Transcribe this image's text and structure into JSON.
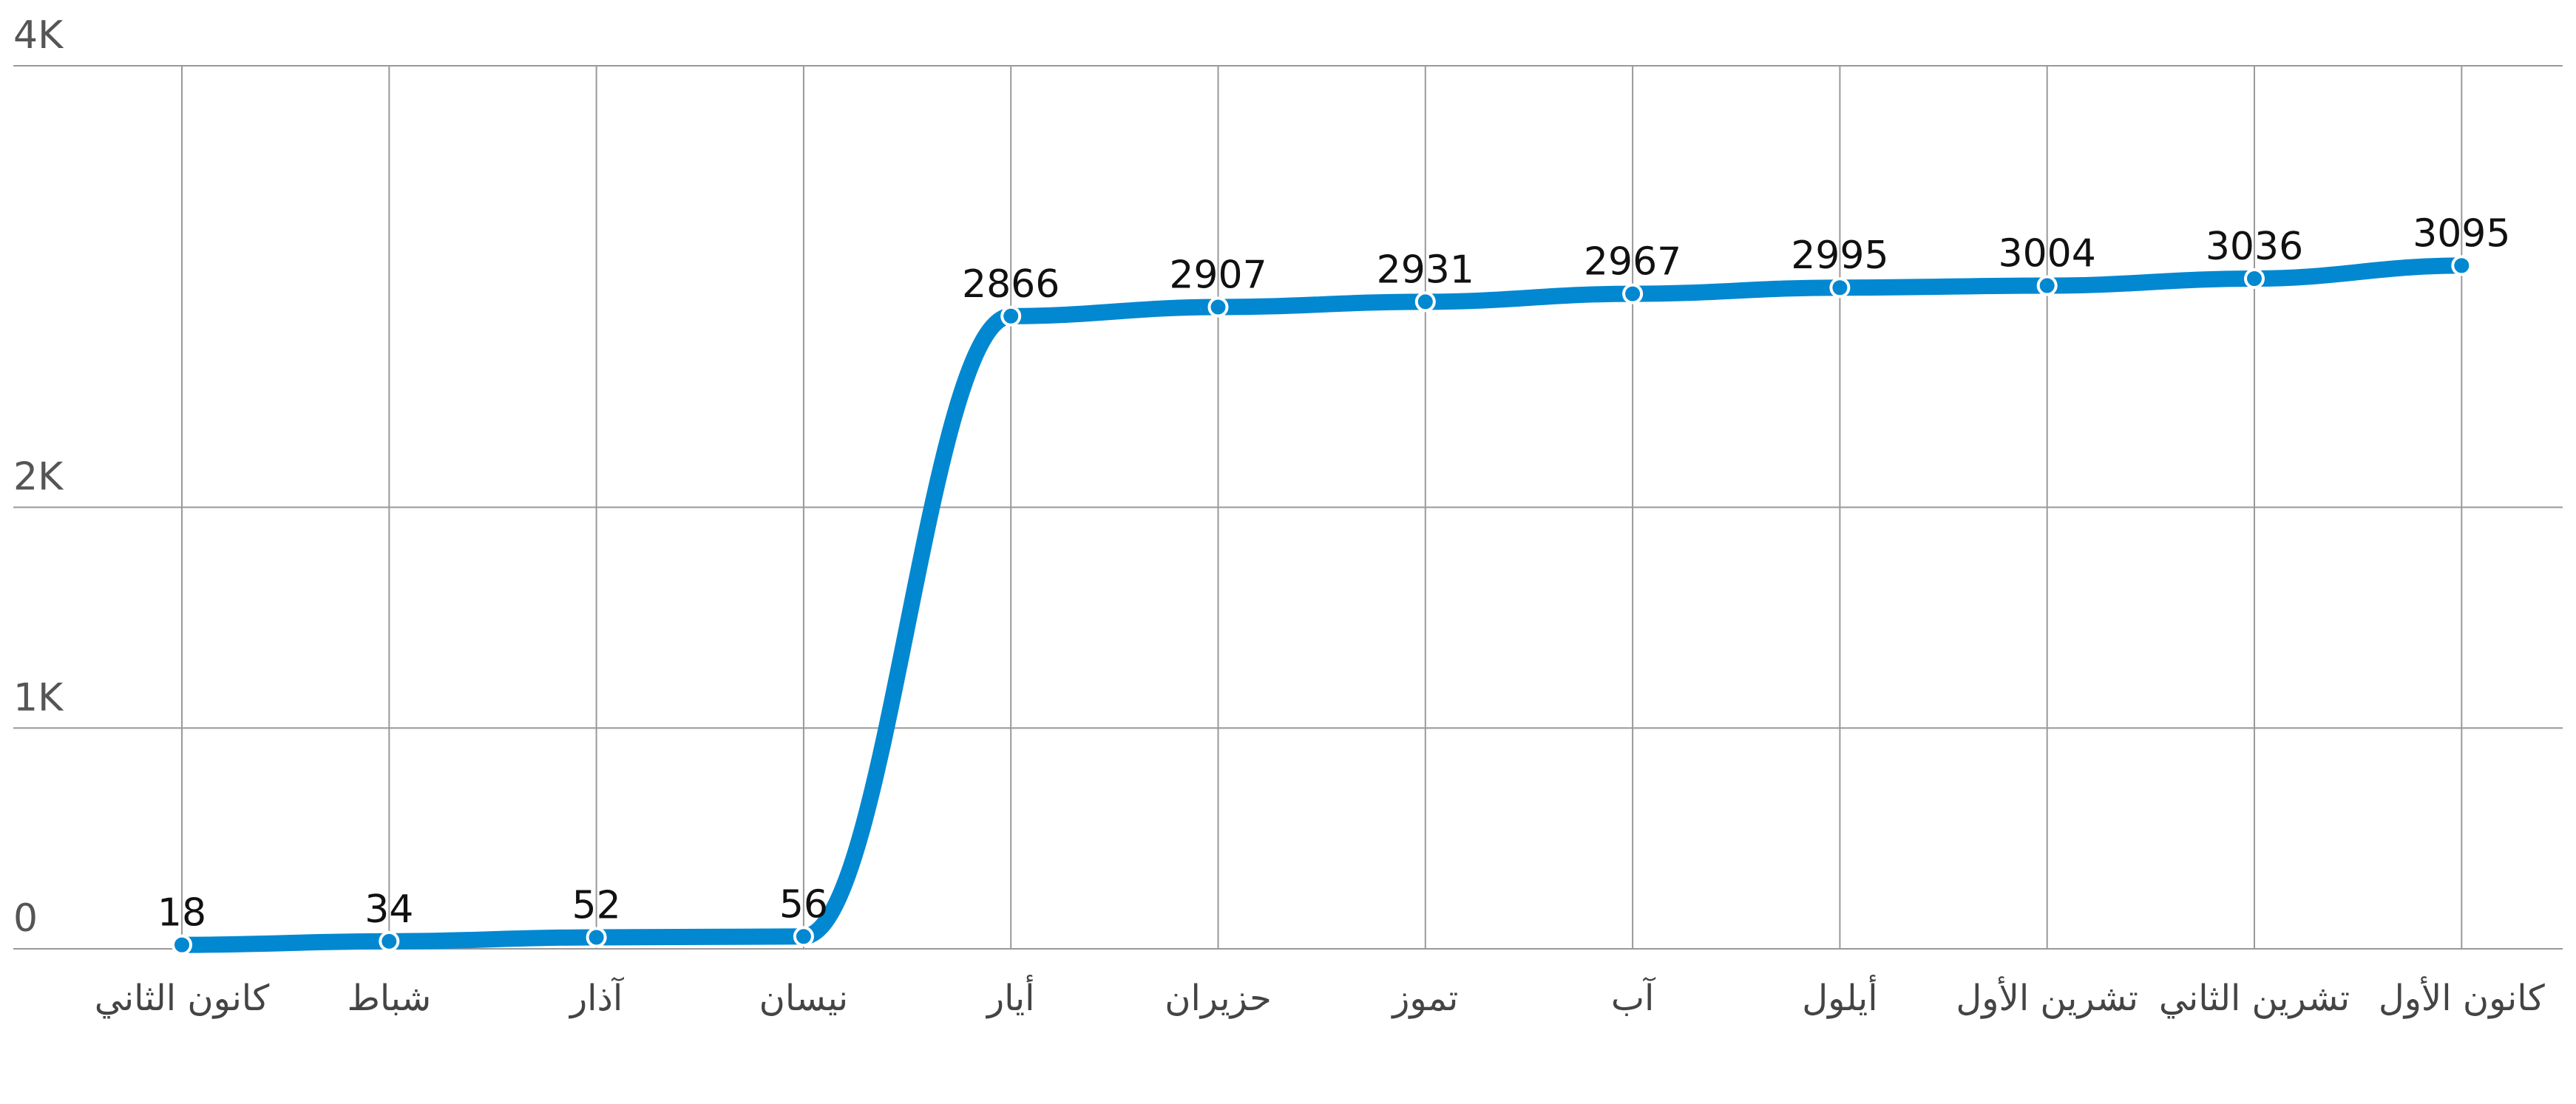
{
  "chart_data": {
    "type": "line",
    "categories": [
      "كانون الثاني",
      "شباط",
      "آذار",
      "نيسان",
      "أيار",
      "حزيران",
      "تموز",
      "آب",
      "أيلول",
      "تشرين الأول",
      "تشرين الثاني",
      "كانون الأول"
    ],
    "series": [
      {
        "color": "#0288d1",
        "values": [
          18,
          34,
          52,
          56,
          2866,
          2907,
          2931,
          2967,
          2995,
          3004,
          3036,
          3095
        ]
      }
    ],
    "ylim": [
      0,
      4000
    ],
    "yticks": [
      0,
      {
        "value": 1000,
        "label": "1K"
      },
      {
        "value": 2000,
        "label": "2K"
      },
      {
        "value": 4000,
        "label": "4K"
      }
    ],
    "grid": true
  }
}
